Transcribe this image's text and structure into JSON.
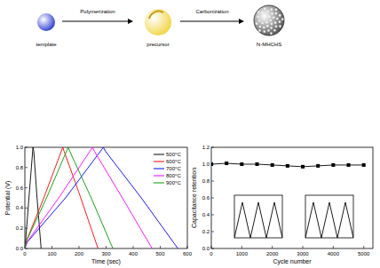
{
  "diagram": {
    "nodes": [
      {
        "label": "template",
        "color": "#2f3fd0"
      },
      {
        "label": "precursor",
        "color": "#f2d544"
      },
      {
        "label": "N-MHCHS",
        "color": "#555555"
      }
    ],
    "arrows": [
      {
        "label": "Polymerization"
      },
      {
        "label": "Carbonization"
      }
    ]
  },
  "chart_data": [
    {
      "type": "line",
      "x_label": "Time (sec)",
      "y_label": "Potential (V)",
      "xlim": [
        0,
        600
      ],
      "ylim": [
        0,
        1.0
      ],
      "xticks": [
        0,
        100,
        200,
        300,
        400,
        500,
        600
      ],
      "yticks": [
        {
          "value": 0,
          "label": "0.0"
        },
        0.2,
        0.4,
        0.6,
        0.8,
        {
          "value": 1,
          "label": "1.0"
        }
      ],
      "legend": "upper-right",
      "series": [
        {
          "name": "500°C",
          "color": "#000000",
          "x": [
            0,
            3,
            15,
            30,
            33,
            45,
            60
          ],
          "values": [
            0,
            0.08,
            0.5,
            1.0,
            0.96,
            0.5,
            0
          ]
        },
        {
          "name": "600°C",
          "color": "#ff0000",
          "x": [
            0,
            5,
            70,
            140,
            145,
            200,
            270
          ],
          "values": [
            0,
            0.07,
            0.5,
            1.0,
            0.96,
            0.55,
            0
          ]
        },
        {
          "name": "700°C",
          "color": "#0000ff",
          "x": [
            0,
            8,
            150,
            290,
            298,
            430,
            565
          ],
          "values": [
            0,
            0.06,
            0.5,
            1.0,
            0.96,
            0.5,
            0
          ]
        },
        {
          "name": "800°C",
          "color": "#ff00ff",
          "x": [
            0,
            7,
            125,
            250,
            257,
            360,
            470
          ],
          "values": [
            0,
            0.06,
            0.5,
            1.0,
            0.96,
            0.5,
            0
          ]
        },
        {
          "name": "900°C",
          "color": "#009900",
          "x": [
            0,
            5,
            80,
            160,
            166,
            245,
            325
          ],
          "values": [
            0,
            0.07,
            0.5,
            1.0,
            0.96,
            0.5,
            0
          ]
        }
      ]
    },
    {
      "type": "line",
      "x_label": "Cycle number",
      "y_label": "Capacitance retention",
      "xlim": [
        0,
        5300
      ],
      "ylim": [
        0,
        1.2
      ],
      "xticks": [
        0,
        1000,
        2000,
        3000,
        4000,
        5000
      ],
      "yticks": [
        {
          "value": 0,
          "label": "0.0"
        },
        0.2,
        0.4,
        0.6,
        0.8,
        {
          "value": 1,
          "label": "1.0"
        },
        1.2
      ],
      "series": [
        {
          "color": "#000000",
          "marker": "square",
          "x": [
            0,
            500,
            1000,
            1500,
            2000,
            2500,
            3000,
            3500,
            4000,
            4500,
            5000
          ],
          "values": [
            1.0,
            1.01,
            1.0,
            1.0,
            0.99,
            0.98,
            0.97,
            0.98,
            0.99,
            0.99,
            0.99
          ]
        }
      ]
    },
    {
      "type": "line",
      "tick_labels": false,
      "xlim": [
        0,
        6
      ],
      "ylim": [
        0,
        1.2
      ],
      "series": [
        {
          "color": "#000000",
          "x": [
            0,
            1,
            2,
            3,
            4,
            5,
            6
          ],
          "values": [
            0,
            1,
            0,
            1,
            0,
            1,
            0
          ]
        }
      ]
    },
    {
      "type": "line",
      "tick_labels": false,
      "xlim": [
        0,
        6
      ],
      "ylim": [
        0,
        1.2
      ],
      "series": [
        {
          "color": "#000000",
          "x": [
            0,
            1,
            2,
            3,
            4,
            5,
            6
          ],
          "values": [
            0,
            1,
            0,
            1,
            0,
            1,
            0
          ]
        }
      ]
    }
  ]
}
